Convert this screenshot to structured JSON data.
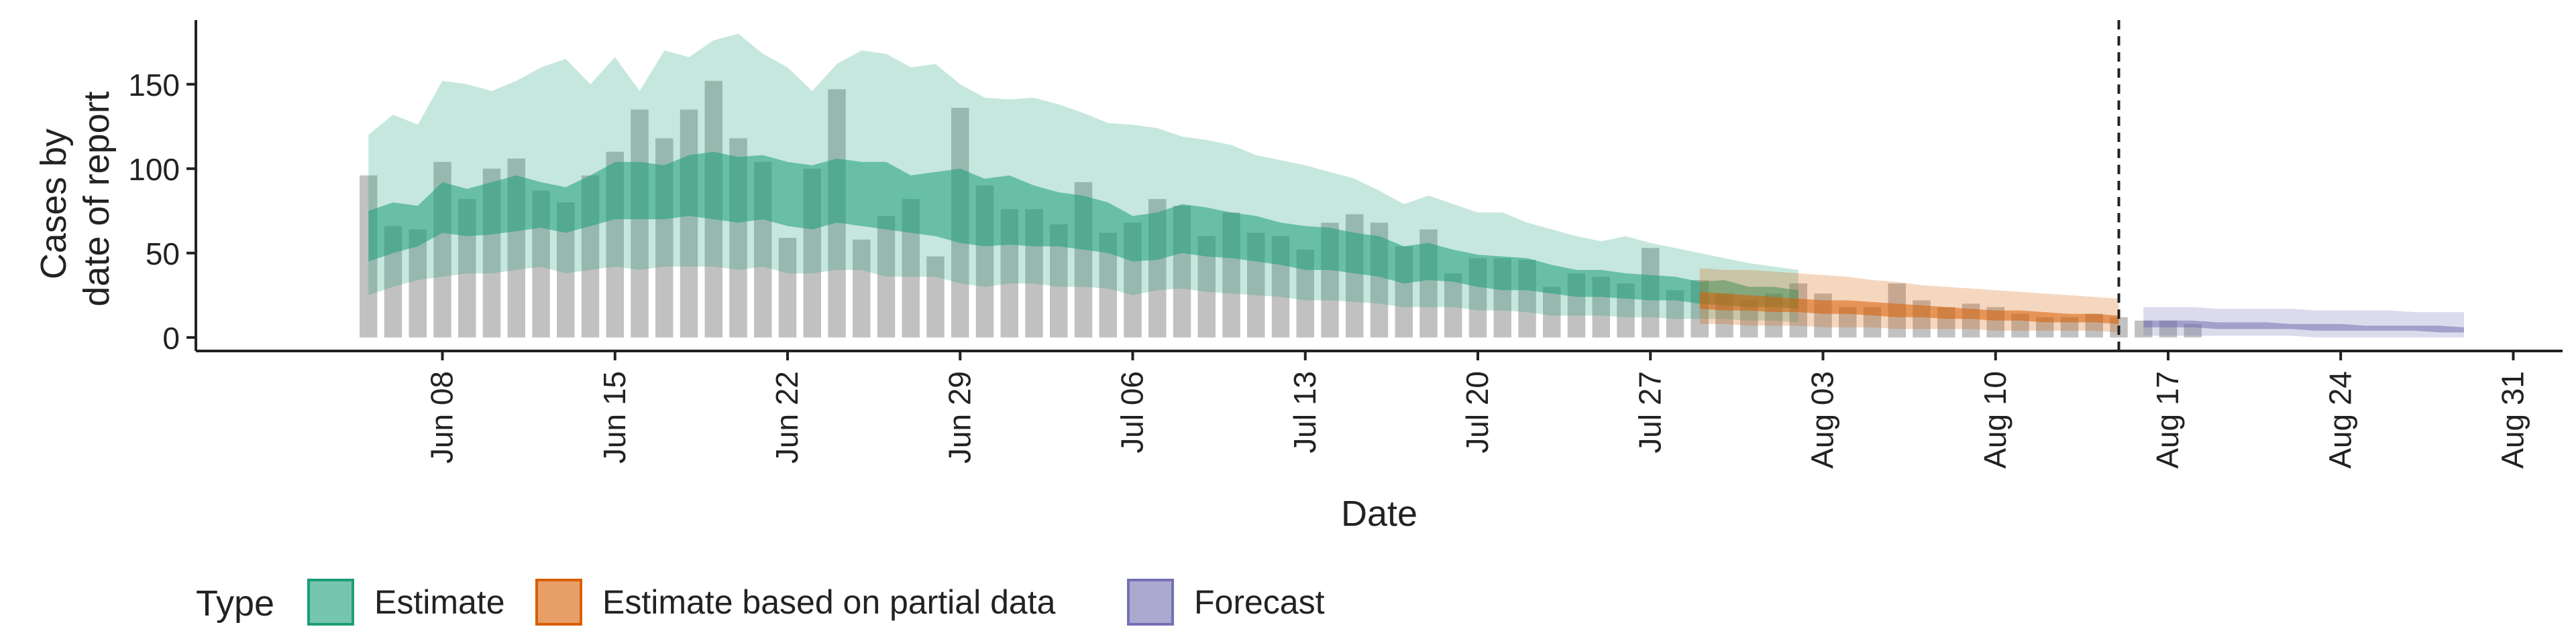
{
  "chart_data": {
    "type": "area",
    "title": "",
    "xlabel": "Date",
    "ylabel_lines": [
      "Cases by",
      "date of report"
    ],
    "x_range": [
      "2020-05-29",
      "2020-09-02"
    ],
    "ylim": [
      -8,
      188
    ],
    "y_ticks": [
      0,
      50,
      100,
      150
    ],
    "x_ticks": [
      {
        "date": "2020-06-08",
        "label": "Jun 08"
      },
      {
        "date": "2020-06-15",
        "label": "Jun 15"
      },
      {
        "date": "2020-06-22",
        "label": "Jun 22"
      },
      {
        "date": "2020-06-29",
        "label": "Jun 29"
      },
      {
        "date": "2020-07-06",
        "label": "Jul 06"
      },
      {
        "date": "2020-07-13",
        "label": "Jul 13"
      },
      {
        "date": "2020-07-20",
        "label": "Jul 20"
      },
      {
        "date": "2020-07-27",
        "label": "Jul 27"
      },
      {
        "date": "2020-08-03",
        "label": "Aug 03"
      },
      {
        "date": "2020-08-10",
        "label": "Aug 10"
      },
      {
        "date": "2020-08-17",
        "label": "Aug 17"
      },
      {
        "date": "2020-08-24",
        "label": "Aug 24"
      },
      {
        "date": "2020-08-31",
        "label": "Aug 31"
      }
    ],
    "forecast_start": "2020-08-15",
    "grid": false,
    "legend": {
      "position": "bottom-left",
      "title": "Type",
      "entries": [
        {
          "label": "Estimate",
          "color": "#1b9e77"
        },
        {
          "label": "Estimate based on partial data",
          "color": "#d95f02"
        },
        {
          "label": "Forecast",
          "color": "#7570b3"
        }
      ]
    },
    "bar_color": "#a6a6a6",
    "reported_cases": {
      "start": "2020-06-05",
      "values": [
        96,
        66,
        64,
        104,
        82,
        100,
        106,
        87,
        80,
        96,
        110,
        135,
        118,
        135,
        152,
        118,
        104,
        59,
        100,
        147,
        58,
        72,
        82,
        48,
        136,
        90,
        76,
        76,
        67,
        92,
        62,
        68,
        82,
        78,
        60,
        74,
        62,
        60,
        52,
        68,
        73,
        68,
        54,
        64,
        38,
        47,
        47,
        46,
        30,
        38,
        36,
        32,
        53,
        28,
        34,
        26,
        22,
        26,
        32,
        26,
        18,
        18,
        32,
        22,
        18,
        20,
        18,
        14,
        12,
        12,
        14,
        12,
        10,
        10,
        8
      ]
    },
    "series": [
      {
        "name": "Estimate",
        "color": "#1b9e77",
        "start": "2020-06-05",
        "outer_upper": [
          120,
          132,
          126,
          152,
          150,
          146,
          152,
          160,
          165,
          150,
          166,
          146,
          170,
          166,
          176,
          180,
          168,
          160,
          146,
          162,
          170,
          168,
          160,
          162,
          150,
          142,
          141,
          142,
          138,
          133,
          127,
          126,
          124,
          119,
          117,
          114,
          108,
          105,
          102,
          98,
          94,
          87,
          79,
          84,
          79,
          74,
          74,
          68,
          64,
          60,
          57,
          60,
          56,
          53,
          50,
          47,
          44,
          42,
          40
        ],
        "inner_upper": [
          75,
          80,
          78,
          92,
          88,
          92,
          96,
          92,
          89,
          96,
          104,
          104,
          102,
          108,
          110,
          107,
          108,
          104,
          102,
          106,
          104,
          104,
          96,
          98,
          100,
          94,
          96,
          90,
          86,
          84,
          80,
          72,
          74,
          79,
          77,
          74,
          72,
          68,
          66,
          65,
          62,
          60,
          54,
          56,
          52,
          49,
          48,
          47,
          43,
          40,
          40,
          38,
          37,
          36,
          33,
          34,
          30,
          30,
          28
        ],
        "inner_lower": [
          45,
          50,
          54,
          62,
          60,
          61,
          63,
          65,
          62,
          66,
          70,
          70,
          70,
          72,
          70,
          68,
          70,
          66,
          64,
          68,
          66,
          64,
          62,
          60,
          56,
          54,
          55,
          54,
          54,
          52,
          50,
          45,
          46,
          50,
          48,
          47,
          45,
          43,
          40,
          40,
          38,
          36,
          32,
          34,
          33,
          30,
          28,
          28,
          26,
          24,
          24,
          23,
          22,
          22,
          20,
          19,
          18,
          18,
          17
        ],
        "outer_lower": [
          25,
          30,
          34,
          36,
          38,
          38,
          40,
          42,
          38,
          40,
          42,
          40,
          42,
          42,
          42,
          40,
          42,
          38,
          38,
          40,
          40,
          36,
          36,
          36,
          32,
          30,
          32,
          32,
          30,
          30,
          29,
          25,
          28,
          29,
          27,
          26,
          25,
          24,
          22,
          22,
          21,
          20,
          18,
          18,
          18,
          16,
          16,
          15,
          13,
          13,
          13,
          12,
          12,
          11,
          11,
          11,
          10,
          10,
          9
        ]
      },
      {
        "name": "Estimate based on partial data",
        "color": "#d95f02",
        "start": "2020-07-29",
        "outer_upper": [
          41,
          40,
          40,
          39,
          38,
          37,
          36,
          34,
          33,
          31,
          30,
          29,
          28,
          27,
          26,
          25,
          24,
          23
        ],
        "inner_upper": [
          27,
          26,
          25,
          24,
          23,
          22,
          22,
          21,
          20,
          19,
          18,
          17,
          16,
          16,
          15,
          14,
          14,
          13
        ],
        "inner_lower": [
          17,
          16,
          16,
          15,
          15,
          14,
          14,
          13,
          12,
          12,
          11,
          11,
          10,
          10,
          9,
          9,
          9,
          8
        ],
        "outer_lower": [
          8,
          8,
          7,
          7,
          7,
          6,
          6,
          6,
          5,
          5,
          5,
          5,
          4,
          4,
          4,
          4,
          4,
          3
        ]
      },
      {
        "name": "Forecast",
        "color": "#7570b3",
        "start": "2020-08-16",
        "outer_upper": [
          18,
          18,
          18,
          17,
          17,
          17,
          17,
          16,
          16,
          16,
          16,
          15,
          15,
          15
        ],
        "inner_upper": [
          10,
          10,
          10,
          9,
          9,
          9,
          8,
          8,
          8,
          7,
          7,
          7,
          7,
          6
        ],
        "inner_lower": [
          6,
          6,
          6,
          5,
          5,
          5,
          5,
          4,
          4,
          4,
          4,
          4,
          3,
          3
        ],
        "outer_lower": [
          1,
          1,
          1,
          1,
          1,
          1,
          1,
          0,
          0,
          0,
          0,
          0,
          0,
          0
        ]
      }
    ]
  }
}
